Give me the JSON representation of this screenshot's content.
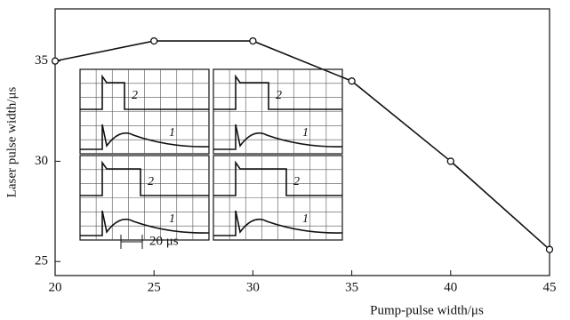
{
  "chart_data": {
    "type": "line",
    "x_label": "Pump-pulse width/μs",
    "y_label": "Laser pulse width/μs",
    "x": [
      20,
      25,
      30,
      35,
      40,
      45
    ],
    "values": [
      35,
      36,
      36,
      34,
      30,
      25.6
    ],
    "color": "#111111",
    "xlim": [
      20,
      45
    ],
    "xticks": [
      20,
      25,
      30,
      35,
      40,
      45
    ],
    "ylim": [
      24.3,
      37.6
    ],
    "yticks": [
      25,
      30,
      35
    ],
    "annotations": {
      "trace_1": "1",
      "trace_2": "2",
      "scale": "20 μs"
    }
  }
}
